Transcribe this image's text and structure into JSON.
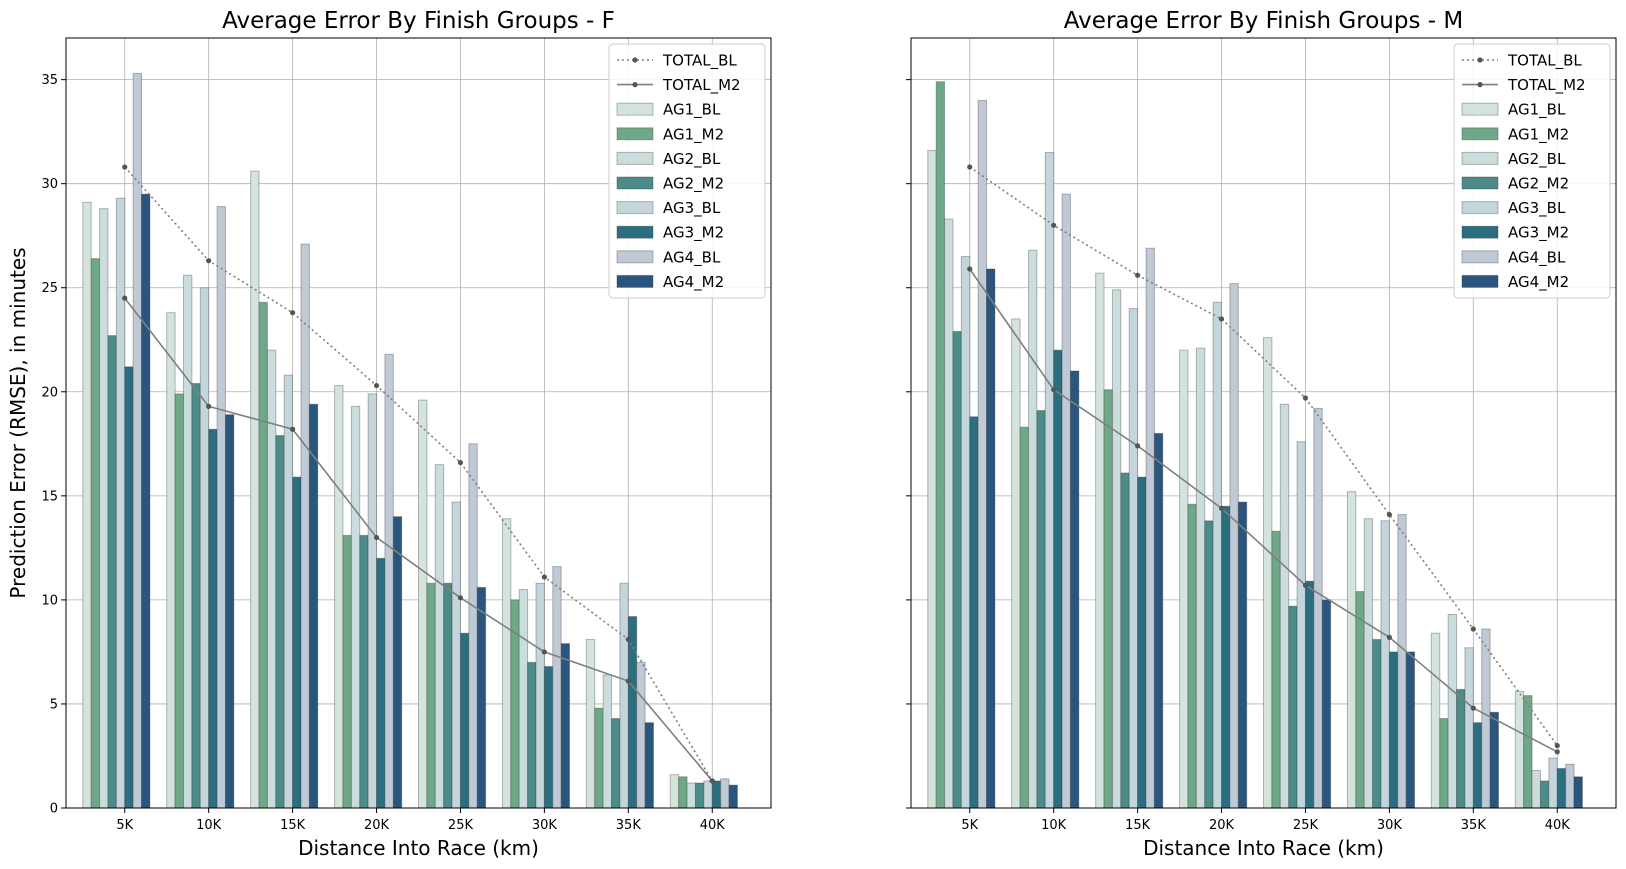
{
  "chart_data": [
    {
      "type": "bar",
      "title": "Average Error By Finish Groups - F",
      "xlabel": "Distance Into Race (km)",
      "ylabel": "Prediction Error (RMSE), in minutes",
      "categories": [
        "5K",
        "10K",
        "15K",
        "20K",
        "25K",
        "30K",
        "35K",
        "40K"
      ],
      "ylim": [
        0,
        37
      ],
      "yticks": [
        0,
        5,
        10,
        15,
        20,
        25,
        30,
        35
      ],
      "grid": true,
      "legend_position": "top-right",
      "lines": [
        {
          "name": "TOTAL_BL",
          "style": "dotted",
          "values": [
            30.8,
            26.3,
            23.8,
            20.3,
            16.6,
            11.1,
            8.1,
            1.3
          ]
        },
        {
          "name": "TOTAL_M2",
          "style": "solid",
          "values": [
            24.5,
            19.3,
            18.2,
            13.0,
            10.1,
            7.5,
            6.1,
            1.3
          ]
        }
      ],
      "series": [
        {
          "name": "AG1_BL",
          "values": [
            29.1,
            23.8,
            30.6,
            20.3,
            19.6,
            13.9,
            8.1,
            1.6
          ]
        },
        {
          "name": "AG1_M2",
          "values": [
            26.4,
            19.9,
            24.3,
            13.1,
            10.8,
            10.0,
            4.8,
            1.5
          ]
        },
        {
          "name": "AG2_BL",
          "values": [
            28.8,
            25.6,
            22.0,
            19.3,
            16.5,
            10.5,
            6.4,
            1.2
          ]
        },
        {
          "name": "AG2_M2",
          "values": [
            22.7,
            20.4,
            17.9,
            13.1,
            10.8,
            7.0,
            4.3,
            1.2
          ]
        },
        {
          "name": "AG3_BL",
          "values": [
            29.3,
            25.0,
            20.8,
            19.9,
            14.7,
            10.8,
            10.8,
            1.3
          ]
        },
        {
          "name": "AG3_M2",
          "values": [
            21.2,
            18.2,
            15.9,
            12.0,
            8.4,
            6.8,
            9.2,
            1.3
          ]
        },
        {
          "name": "AG4_BL",
          "values": [
            35.3,
            28.9,
            27.1,
            21.8,
            17.5,
            11.6,
            7.0,
            1.4
          ]
        },
        {
          "name": "AG4_M2",
          "values": [
            29.5,
            18.9,
            19.4,
            14.0,
            10.6,
            7.9,
            4.1,
            1.1
          ]
        }
      ]
    },
    {
      "type": "bar",
      "title": "Average Error By Finish Groups - M",
      "xlabel": "Distance Into Race (km)",
      "ylabel": "",
      "categories": [
        "5K",
        "10K",
        "15K",
        "20K",
        "25K",
        "30K",
        "35K",
        "40K"
      ],
      "ylim": [
        0,
        37
      ],
      "yticks": [
        0,
        5,
        10,
        15,
        20,
        25,
        30,
        35
      ],
      "grid": true,
      "legend_position": "top-right",
      "lines": [
        {
          "name": "TOTAL_BL",
          "style": "dotted",
          "values": [
            30.8,
            28.0,
            25.6,
            23.5,
            19.7,
            14.1,
            8.6,
            3.0
          ]
        },
        {
          "name": "TOTAL_M2",
          "style": "solid",
          "values": [
            25.9,
            20.1,
            17.4,
            14.4,
            10.7,
            8.2,
            4.8,
            2.7
          ]
        }
      ],
      "series": [
        {
          "name": "AG1_BL",
          "values": [
            31.6,
            23.5,
            25.7,
            22.0,
            22.6,
            15.2,
            8.4,
            5.6
          ]
        },
        {
          "name": "AG1_M2",
          "values": [
            34.9,
            18.3,
            20.1,
            14.6,
            13.3,
            10.4,
            4.3,
            5.4
          ]
        },
        {
          "name": "AG2_BL",
          "values": [
            28.3,
            26.8,
            24.9,
            22.1,
            19.4,
            13.9,
            9.3,
            1.8
          ]
        },
        {
          "name": "AG2_M2",
          "values": [
            22.9,
            19.1,
            16.1,
            13.8,
            9.7,
            8.1,
            5.7,
            1.3
          ]
        },
        {
          "name": "AG3_BL",
          "values": [
            26.5,
            31.5,
            24.0,
            24.3,
            17.6,
            13.8,
            7.7,
            2.4
          ]
        },
        {
          "name": "AG3_M2",
          "values": [
            18.8,
            22.0,
            15.9,
            14.5,
            10.9,
            7.5,
            4.1,
            1.9
          ]
        },
        {
          "name": "AG4_BL",
          "values": [
            34.0,
            29.5,
            26.9,
            25.2,
            19.2,
            14.1,
            8.6,
            2.1
          ]
        },
        {
          "name": "AG4_M2",
          "values": [
            25.9,
            21.0,
            18.0,
            14.7,
            10.0,
            7.5,
            4.6,
            1.5
          ]
        }
      ]
    }
  ],
  "colors": {
    "AG1_BL": "#d4e4dd",
    "AG1_M2": "#6ea889",
    "AG2_BL": "#cadddc",
    "AG2_M2": "#4b8b88",
    "AG3_BL": "#c4d6dc",
    "AG3_M2": "#2b6e80",
    "AG4_BL": "#bfcad6",
    "AG4_M2": "#2a557c",
    "TOTAL_BL": "#7f7f7f",
    "TOTAL_M2": "#7f7f7f"
  }
}
